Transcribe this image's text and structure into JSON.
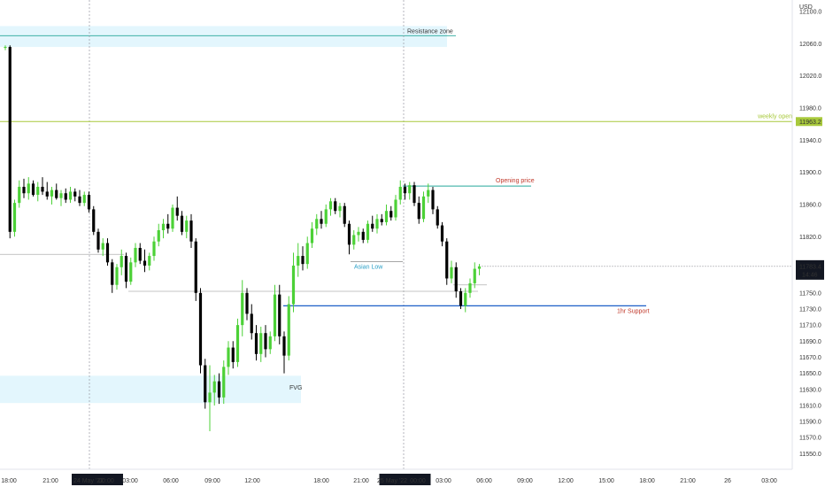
{
  "chart_data": {
    "type": "candlestick",
    "currency": "USD",
    "price_range": [
      11535,
      12110
    ],
    "y_ticks": [
      12100.0,
      12060.0,
      12020.0,
      11980.0,
      11940.0,
      11900.0,
      11860.0,
      11820.0,
      11780.0,
      11750.0,
      11730.0,
      11710.0,
      11690.0,
      11670.0,
      11650.0,
      11630.0,
      11610.0,
      11590.0,
      11570.0,
      11550.0
    ],
    "y_tick_labels": [
      "12100.0",
      "12060.0",
      "12020.0",
      "11980.0",
      "11940.0",
      "11900.0",
      "11860.0",
      "11820.0",
      "11780.0",
      "11750.0",
      "11730.0",
      "11710.0",
      "11690.0",
      "11670.0",
      "11650.0",
      "11630.0",
      "11610.0",
      "11590.0",
      "11570.0",
      "11550.0"
    ],
    "x_labels": [
      "18:00",
      "21:00",
      "24 May '22",
      "00:00",
      "03:00",
      "06:00",
      "09:00",
      "12:00",
      "18:00",
      "21:00",
      "25 May '22",
      "00:00",
      "03:00",
      "06:00",
      "09:00",
      "12:00",
      "15:00",
      "18:00",
      "21:00",
      "26",
      "03:00"
    ],
    "candles": [
      {
        "o": 12055,
        "h": 12058,
        "l": 12052,
        "c": 12056
      },
      {
        "o": 12056,
        "h": 12058,
        "l": 11818,
        "c": 11826
      },
      {
        "o": 11826,
        "h": 11866,
        "l": 11820,
        "c": 11862
      },
      {
        "o": 11862,
        "h": 11890,
        "l": 11856,
        "c": 11882
      },
      {
        "o": 11882,
        "h": 11892,
        "l": 11868,
        "c": 11874
      },
      {
        "o": 11874,
        "h": 11894,
        "l": 11866,
        "c": 11886
      },
      {
        "o": 11886,
        "h": 11890,
        "l": 11870,
        "c": 11872
      },
      {
        "o": 11872,
        "h": 11888,
        "l": 11864,
        "c": 11882
      },
      {
        "o": 11882,
        "h": 11894,
        "l": 11872,
        "c": 11876
      },
      {
        "o": 11876,
        "h": 11888,
        "l": 11866,
        "c": 11870
      },
      {
        "o": 11870,
        "h": 11882,
        "l": 11860,
        "c": 11878
      },
      {
        "o": 11878,
        "h": 11886,
        "l": 11866,
        "c": 11868
      },
      {
        "o": 11868,
        "h": 11878,
        "l": 11858,
        "c": 11874
      },
      {
        "o": 11874,
        "h": 11880,
        "l": 11862,
        "c": 11866
      },
      {
        "o": 11866,
        "h": 11882,
        "l": 11862,
        "c": 11876
      },
      {
        "o": 11876,
        "h": 11880,
        "l": 11864,
        "c": 11870
      },
      {
        "o": 11870,
        "h": 11878,
        "l": 11858,
        "c": 11862
      },
      {
        "o": 11862,
        "h": 11876,
        "l": 11858,
        "c": 11872
      },
      {
        "o": 11872,
        "h": 11876,
        "l": 11850,
        "c": 11854
      },
      {
        "o": 11854,
        "h": 11858,
        "l": 11822,
        "c": 11826
      },
      {
        "o": 11826,
        "h": 11830,
        "l": 11800,
        "c": 11804
      },
      {
        "o": 11804,
        "h": 11818,
        "l": 11796,
        "c": 11812
      },
      {
        "o": 11812,
        "h": 11818,
        "l": 11784,
        "c": 11788
      },
      {
        "o": 11788,
        "h": 11792,
        "l": 11750,
        "c": 11760
      },
      {
        "o": 11760,
        "h": 11786,
        "l": 11754,
        "c": 11782
      },
      {
        "o": 11782,
        "h": 11804,
        "l": 11772,
        "c": 11796
      },
      {
        "o": 11796,
        "h": 11800,
        "l": 11756,
        "c": 11764
      },
      {
        "o": 11764,
        "h": 11794,
        "l": 11760,
        "c": 11788
      },
      {
        "o": 11788,
        "h": 11812,
        "l": 11782,
        "c": 11806
      },
      {
        "o": 11806,
        "h": 11812,
        "l": 11786,
        "c": 11790
      },
      {
        "o": 11790,
        "h": 11804,
        "l": 11776,
        "c": 11784
      },
      {
        "o": 11784,
        "h": 11800,
        "l": 11778,
        "c": 11796
      },
      {
        "o": 11796,
        "h": 11820,
        "l": 11790,
        "c": 11814
      },
      {
        "o": 11814,
        "h": 11836,
        "l": 11808,
        "c": 11828
      },
      {
        "o": 11828,
        "h": 11842,
        "l": 11818,
        "c": 11836
      },
      {
        "o": 11836,
        "h": 11848,
        "l": 11824,
        "c": 11830
      },
      {
        "o": 11830,
        "h": 11860,
        "l": 11826,
        "c": 11856
      },
      {
        "o": 11856,
        "h": 11870,
        "l": 11840,
        "c": 11846
      },
      {
        "o": 11846,
        "h": 11852,
        "l": 11822,
        "c": 11826
      },
      {
        "o": 11826,
        "h": 11846,
        "l": 11818,
        "c": 11840
      },
      {
        "o": 11840,
        "h": 11848,
        "l": 11806,
        "c": 11814
      },
      {
        "o": 11814,
        "h": 11818,
        "l": 11740,
        "c": 11750
      },
      {
        "o": 11750,
        "h": 11756,
        "l": 11650,
        "c": 11660
      },
      {
        "o": 11660,
        "h": 11668,
        "l": 11606,
        "c": 11614
      },
      {
        "o": 11614,
        "h": 11660,
        "l": 11578,
        "c": 11626
      },
      {
        "o": 11626,
        "h": 11648,
        "l": 11610,
        "c": 11640
      },
      {
        "o": 11640,
        "h": 11650,
        "l": 11612,
        "c": 11620
      },
      {
        "o": 11620,
        "h": 11666,
        "l": 11612,
        "c": 11658
      },
      {
        "o": 11658,
        "h": 11690,
        "l": 11648,
        "c": 11682
      },
      {
        "o": 11682,
        "h": 11690,
        "l": 11656,
        "c": 11664
      },
      {
        "o": 11664,
        "h": 11718,
        "l": 11658,
        "c": 11710
      },
      {
        "o": 11710,
        "h": 11766,
        "l": 11696,
        "c": 11750
      },
      {
        "o": 11750,
        "h": 11756,
        "l": 11716,
        "c": 11724
      },
      {
        "o": 11724,
        "h": 11736,
        "l": 11692,
        "c": 11700
      },
      {
        "o": 11700,
        "h": 11710,
        "l": 11666,
        "c": 11674
      },
      {
        "o": 11674,
        "h": 11708,
        "l": 11664,
        "c": 11700
      },
      {
        "o": 11700,
        "h": 11710,
        "l": 11670,
        "c": 11680
      },
      {
        "o": 11680,
        "h": 11702,
        "l": 11674,
        "c": 11696
      },
      {
        "o": 11696,
        "h": 11760,
        "l": 11690,
        "c": 11748
      },
      {
        "o": 11748,
        "h": 11760,
        "l": 11686,
        "c": 11696
      },
      {
        "o": 11696,
        "h": 11702,
        "l": 11650,
        "c": 11672
      },
      {
        "o": 11672,
        "h": 11746,
        "l": 11666,
        "c": 11736
      },
      {
        "o": 11736,
        "h": 11800,
        "l": 11726,
        "c": 11784
      },
      {
        "o": 11784,
        "h": 11812,
        "l": 11770,
        "c": 11796
      },
      {
        "o": 11796,
        "h": 11808,
        "l": 11778,
        "c": 11786
      },
      {
        "o": 11786,
        "h": 11820,
        "l": 11780,
        "c": 11812
      },
      {
        "o": 11812,
        "h": 11838,
        "l": 11806,
        "c": 11830
      },
      {
        "o": 11830,
        "h": 11848,
        "l": 11822,
        "c": 11842
      },
      {
        "o": 11842,
        "h": 11852,
        "l": 11830,
        "c": 11836
      },
      {
        "o": 11836,
        "h": 11860,
        "l": 11832,
        "c": 11854
      },
      {
        "o": 11854,
        "h": 11868,
        "l": 11846,
        "c": 11864
      },
      {
        "o": 11864,
        "h": 11868,
        "l": 11848,
        "c": 11852
      },
      {
        "o": 11852,
        "h": 11862,
        "l": 11844,
        "c": 11858
      },
      {
        "o": 11858,
        "h": 11862,
        "l": 11832,
        "c": 11836
      },
      {
        "o": 11836,
        "h": 11840,
        "l": 11798,
        "c": 11810
      },
      {
        "o": 11810,
        "h": 11828,
        "l": 11804,
        "c": 11822
      },
      {
        "o": 11822,
        "h": 11832,
        "l": 11814,
        "c": 11826
      },
      {
        "o": 11826,
        "h": 11830,
        "l": 11812,
        "c": 11816
      },
      {
        "o": 11816,
        "h": 11840,
        "l": 11812,
        "c": 11836
      },
      {
        "o": 11836,
        "h": 11846,
        "l": 11826,
        "c": 11830
      },
      {
        "o": 11830,
        "h": 11848,
        "l": 11824,
        "c": 11842
      },
      {
        "o": 11842,
        "h": 11848,
        "l": 11834,
        "c": 11838
      },
      {
        "o": 11838,
        "h": 11860,
        "l": 11834,
        "c": 11852
      },
      {
        "o": 11852,
        "h": 11858,
        "l": 11840,
        "c": 11844
      },
      {
        "o": 11844,
        "h": 11872,
        "l": 11840,
        "c": 11866
      },
      {
        "o": 11866,
        "h": 11890,
        "l": 11860,
        "c": 11882
      },
      {
        "o": 11882,
        "h": 11886,
        "l": 11866,
        "c": 11874
      },
      {
        "o": 11874,
        "h": 11888,
        "l": 11866,
        "c": 11884
      },
      {
        "o": 11884,
        "h": 11888,
        "l": 11858,
        "c": 11862
      },
      {
        "o": 11862,
        "h": 11870,
        "l": 11836,
        "c": 11842
      },
      {
        "o": 11842,
        "h": 11876,
        "l": 11838,
        "c": 11870
      },
      {
        "o": 11870,
        "h": 11886,
        "l": 11862,
        "c": 11878
      },
      {
        "o": 11878,
        "h": 11882,
        "l": 11848,
        "c": 11854
      },
      {
        "o": 11854,
        "h": 11858,
        "l": 11830,
        "c": 11834
      },
      {
        "o": 11834,
        "h": 11838,
        "l": 11808,
        "c": 11814
      },
      {
        "o": 11814,
        "h": 11818,
        "l": 11760,
        "c": 11768
      },
      {
        "o": 11768,
        "h": 11790,
        "l": 11762,
        "c": 11782
      },
      {
        "o": 11782,
        "h": 11788,
        "l": 11744,
        "c": 11752
      },
      {
        "o": 11752,
        "h": 11756,
        "l": 11730,
        "c": 11734
      },
      {
        "o": 11734,
        "h": 11756,
        "l": 11726,
        "c": 11750
      },
      {
        "o": 11750,
        "h": 11768,
        "l": 11744,
        "c": 11762
      },
      {
        "o": 11762,
        "h": 11788,
        "l": 11756,
        "c": 11780
      },
      {
        "o": 11780,
        "h": 11786,
        "l": 11772,
        "c": 11783
      }
    ],
    "zones": [
      {
        "label": "Resistance zone",
        "low": 12056,
        "high": 12082,
        "line": 12070
      },
      {
        "label": "FVG",
        "low": 11613,
        "high": 11647
      }
    ],
    "levels": [
      {
        "label": "weekly open",
        "price": 11963.2
      },
      {
        "label": "Opening price",
        "price": 11883
      },
      {
        "label": "Asian Low",
        "price": 11789
      },
      {
        "label": "1hr Support",
        "price": 11734
      }
    ],
    "current_price": "11783.4",
    "countdown": "14:46",
    "weekly_open_badge": "11963.2",
    "grid": false,
    "colors": {
      "up": "#4cd137",
      "down": "#000000",
      "resistance_zone": "#e3f6fd",
      "resistance_line": "#26a69a",
      "weekly_open": "#a8c93c",
      "opening_price_line": "#26a69a",
      "opening_price_text": "#c0392b",
      "asian_low_text": "#2a9fc6",
      "asian_low_line": "#888888",
      "support_line": "#1c5fc7",
      "support_text": "#c0392b",
      "gray_line": "#b0b0b0"
    }
  }
}
